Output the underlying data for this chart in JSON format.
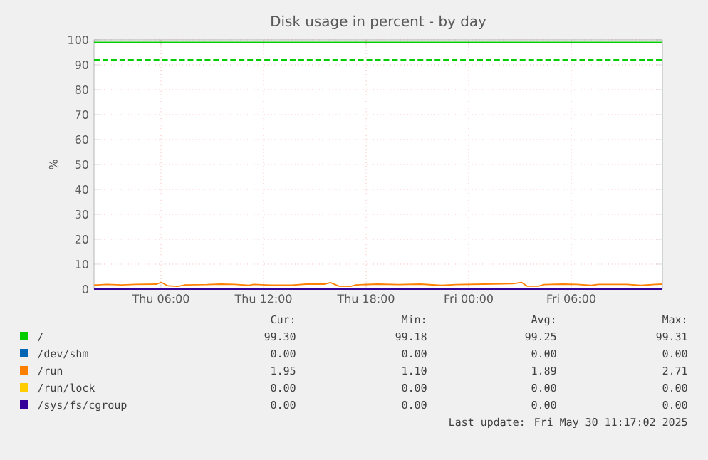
{
  "chart_data": {
    "type": "line",
    "title": "Disk usage in percent - by day",
    "ylabel": "%",
    "xlim": [
      "2025-05-29T02:05",
      "2025-05-30T11:20"
    ],
    "xticks": [
      {
        "value": "2025-05-29T06:00",
        "label": "Thu 06:00"
      },
      {
        "value": "2025-05-29T12:00",
        "label": "Thu 12:00"
      },
      {
        "value": "2025-05-29T18:00",
        "label": "Thu 18:00"
      },
      {
        "value": "2025-05-30T00:00",
        "label": "Fri 00:00"
      },
      {
        "value": "2025-05-30T06:00",
        "label": "Fri 06:00"
      }
    ],
    "ylim": [
      0,
      100
    ],
    "yticks": [
      0,
      10,
      20,
      30,
      40,
      50,
      60,
      70,
      80,
      90,
      100
    ],
    "grid": true,
    "legend": "bottom",
    "series": [
      {
        "name": "/",
        "color": "#00cc00",
        "x": [
          "2025-05-29T02:05",
          "2025-05-29T12:00",
          "2025-05-30T00:00",
          "2025-05-30T11:20"
        ],
        "values": [
          99,
          99,
          99,
          99
        ]
      },
      {
        "name": "/dev/shm",
        "color": "#0066b3"
      },
      {
        "name": "/run",
        "color": "#ff8000",
        "x": [
          "2025-05-29T02:05",
          "2025-05-29T02:50",
          "2025-05-29T03:40",
          "2025-05-29T04:30",
          "2025-05-29T05:45",
          "2025-05-29T06:00",
          "2025-05-29T06:25",
          "2025-05-29T07:00",
          "2025-05-29T07:25",
          "2025-05-29T08:40",
          "2025-05-29T09:30",
          "2025-05-29T10:20",
          "2025-05-29T11:10",
          "2025-05-29T11:25",
          "2025-05-29T12:25",
          "2025-05-29T13:40",
          "2025-05-29T14:30",
          "2025-05-29T15:35",
          "2025-05-29T15:55",
          "2025-05-29T16:25",
          "2025-05-29T17:05",
          "2025-05-29T17:25",
          "2025-05-29T18:40",
          "2025-05-29T19:55",
          "2025-05-29T21:10",
          "2025-05-29T22:25",
          "2025-05-29T23:15",
          "2025-05-30T00:55",
          "2025-05-30T02:35",
          "2025-05-30T03:05",
          "2025-05-30T03:25",
          "2025-05-30T04:05",
          "2025-05-30T04:25",
          "2025-05-30T05:30",
          "2025-05-30T06:20",
          "2025-05-30T07:10",
          "2025-05-30T07:35",
          "2025-05-30T09:15",
          "2025-05-30T10:05",
          "2025-05-30T10:55",
          "2025-05-30T11:20"
        ],
        "values": [
          1.6,
          1.9,
          1.7,
          1.9,
          2.0,
          2.7,
          1.3,
          1.1,
          1.7,
          1.8,
          2.0,
          1.9,
          1.5,
          1.9,
          1.6,
          1.6,
          2.0,
          2.0,
          2.6,
          1.2,
          1.1,
          1.7,
          2.0,
          1.8,
          2.0,
          1.5,
          1.8,
          2.0,
          2.2,
          2.7,
          1.2,
          1.2,
          1.8,
          2.0,
          1.9,
          1.5,
          1.9,
          1.9,
          1.5,
          1.9,
          2.0
        ]
      },
      {
        "name": "/run/lock",
        "color": "#ffcc00"
      },
      {
        "name": "/sys/fs/cgroup",
        "color": "#330099",
        "x": [
          "2025-05-29T02:05",
          "2025-05-30T11:20"
        ],
        "values": [
          0,
          0
        ]
      }
    ],
    "ref_lines": [
      {
        "axis": "y",
        "value": 92,
        "color": "#00cc00",
        "line_style": "dashed"
      }
    ],
    "annotations": [
      "Cur:",
      "Min:",
      "Avg:",
      "Max:",
      "99.30",
      "99.18",
      "99.25",
      "99.31",
      "0.00",
      "0.00",
      "0.00",
      "0.00",
      "1.95",
      "1.10",
      "1.89",
      "2.71",
      "0.00",
      "0.00",
      "0.00",
      "0.00",
      "0.00",
      "0.00",
      "0.00",
      "0.00",
      "Last update: Fri May 30 11:17:02 2025"
    ]
  }
}
